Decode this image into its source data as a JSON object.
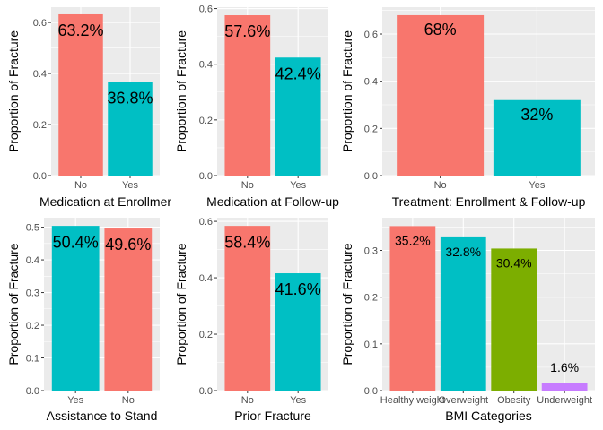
{
  "colors": {
    "salmon": "#F8766D",
    "teal": "#00BFC4",
    "green": "#7CAE00",
    "purple": "#C77CFF"
  },
  "chart_data": [
    {
      "type": "bar",
      "categories": [
        "No",
        "Yes"
      ],
      "values": [
        0.632,
        0.368
      ],
      "labels": [
        "63.2%",
        "36.8%"
      ],
      "colors": [
        "#F8766D",
        "#00BFC4"
      ],
      "xlabel": "Medication at Enrollmer",
      "ylabel": "Proportion of Fracture",
      "ylim": [
        0,
        0.66
      ],
      "yticks": [
        0.0,
        0.2,
        0.4,
        0.6
      ],
      "ytick_labels": [
        "0.0",
        "0.2",
        "0.4",
        "0.6"
      ]
    },
    {
      "type": "bar",
      "categories": [
        "No",
        "Yes"
      ],
      "values": [
        0.576,
        0.424
      ],
      "labels": [
        "57.6%",
        "42.4%"
      ],
      "colors": [
        "#F8766D",
        "#00BFC4"
      ],
      "xlabel": "Medication at Follow-up",
      "ylabel": "Proportion of Fracture",
      "ylim": [
        0,
        0.605
      ],
      "yticks": [
        0.0,
        0.2,
        0.4,
        0.6
      ],
      "ytick_labels": [
        "0.0",
        "0.2",
        "0.4",
        "0.6"
      ]
    },
    {
      "type": "bar",
      "categories": [
        "No",
        "Yes"
      ],
      "values": [
        0.68,
        0.32
      ],
      "labels": [
        "68%",
        "32%"
      ],
      "colors": [
        "#F8766D",
        "#00BFC4"
      ],
      "xlabel": "Treatment: Enrollment & Follow-up",
      "ylabel": "Proportion of Fracture",
      "ylim": [
        0,
        0.714
      ],
      "yticks": [
        0.0,
        0.2,
        0.4,
        0.6
      ],
      "ytick_labels": [
        "0.0",
        "0.2",
        "0.4",
        "0.6"
      ]
    },
    {
      "type": "bar",
      "categories": [
        "Yes",
        "No"
      ],
      "values": [
        0.504,
        0.496
      ],
      "labels": [
        "50.4%",
        "49.6%"
      ],
      "colors": [
        "#00BFC4",
        "#F8766D"
      ],
      "xlabel": "Assistance to Stand",
      "ylabel": "Proportion of Fracture",
      "ylim": [
        0,
        0.529
      ],
      "yticks": [
        0.0,
        0.1,
        0.2,
        0.3,
        0.4,
        0.5
      ],
      "ytick_labels": [
        "0.0",
        "0.1",
        "0.2",
        "0.3",
        "0.4",
        "0.5"
      ]
    },
    {
      "type": "bar",
      "categories": [
        "No",
        "Yes"
      ],
      "values": [
        0.584,
        0.416
      ],
      "labels": [
        "58.4%",
        "41.6%"
      ],
      "colors": [
        "#F8766D",
        "#00BFC4"
      ],
      "xlabel": "Prior Fracture",
      "ylabel": "Proportion of Fracture",
      "ylim": [
        0,
        0.613
      ],
      "yticks": [
        0.0,
        0.2,
        0.4,
        0.6
      ],
      "ytick_labels": [
        "0.0",
        "0.2",
        "0.4",
        "0.6"
      ]
    },
    {
      "type": "bar",
      "categories": [
        "Healthy weight",
        "Overweight",
        "Obesity",
        "Underweight"
      ],
      "values": [
        0.352,
        0.328,
        0.304,
        0.016
      ],
      "labels": [
        "35.2%",
        "32.8%",
        "30.4%",
        "1.6%"
      ],
      "colors": [
        "#F8766D",
        "#00BFC4",
        "#7CAE00",
        "#C77CFF"
      ],
      "xlabel": "BMI Categories",
      "ylabel": "Proportion of Fracture",
      "ylim": [
        0,
        0.37
      ],
      "yticks": [
        0.0,
        0.1,
        0.2,
        0.3
      ],
      "ytick_labels": [
        "0.0",
        "0.1",
        "0.2",
        "0.3"
      ]
    }
  ]
}
